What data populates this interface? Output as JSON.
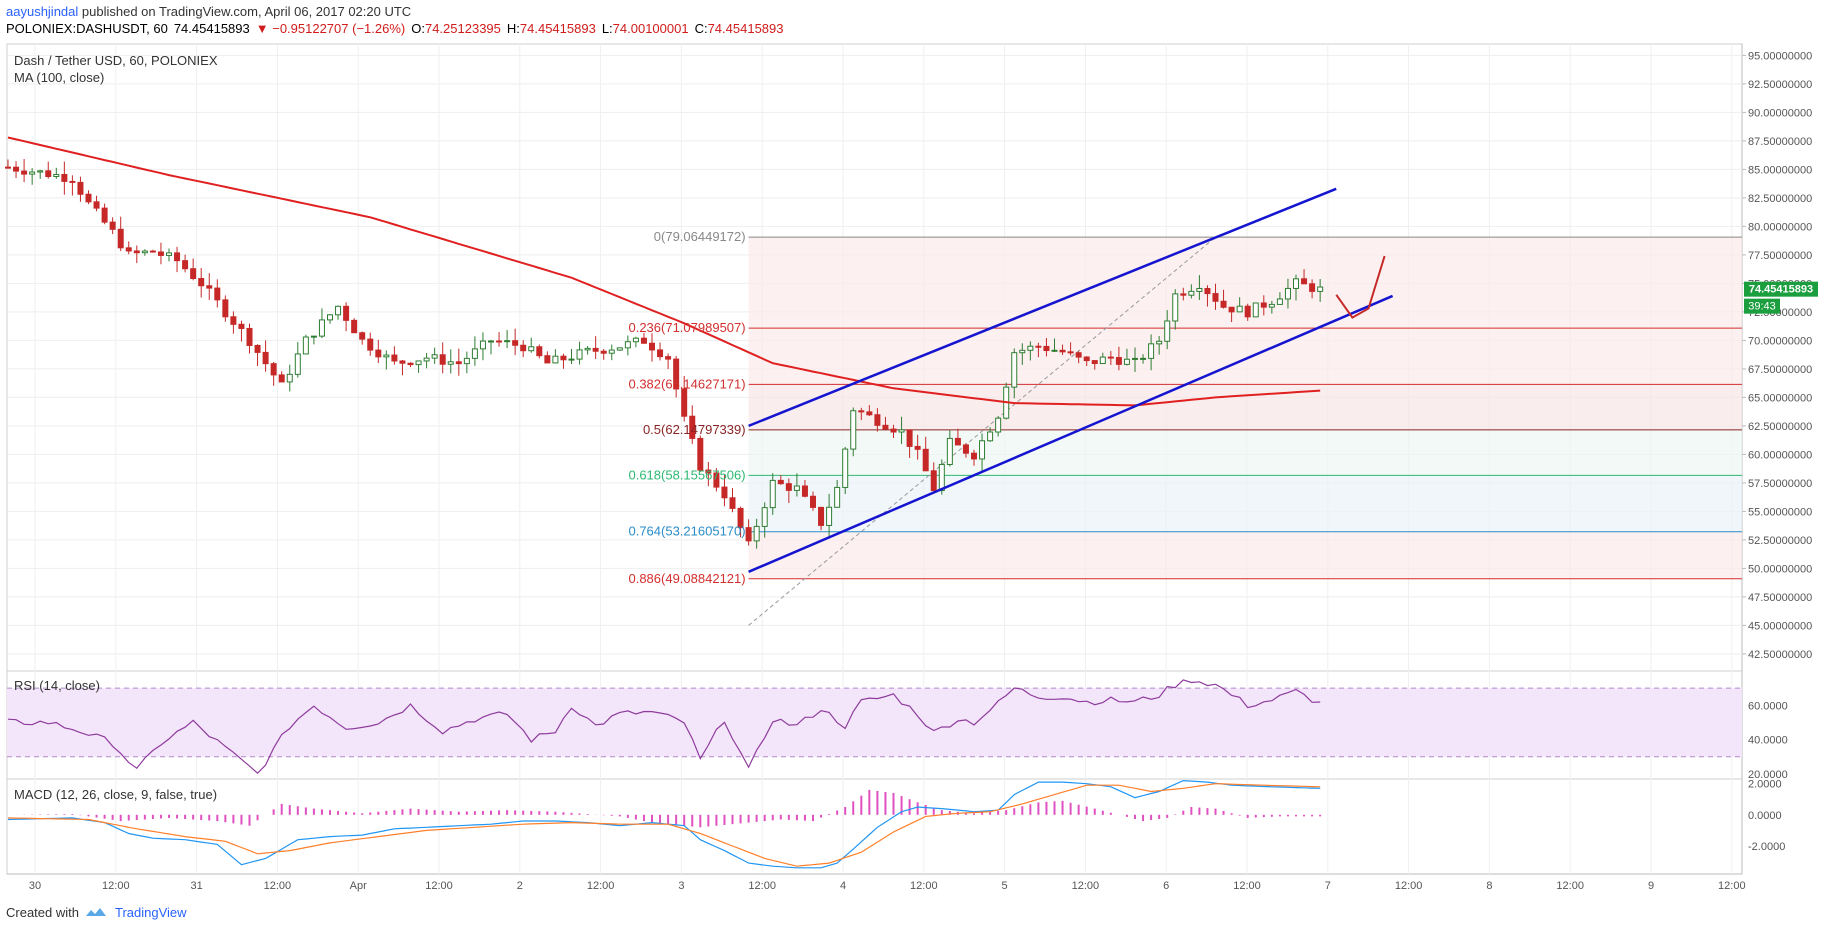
{
  "header": {
    "username": "aayushjindal",
    "published_text": " published on TradingView.com, April 06, 2017 02:20 UTC"
  },
  "symbol_bar": {
    "symbol": "POLONIEX:DASHUSDT, 60",
    "last": "74.45415893",
    "change": "▼ −0.95122707 (−1.26%)",
    "open_label": "O:",
    "open": "74.25123395",
    "high_label": "H:",
    "high": "74.45415893",
    "low_label": "L:",
    "low": "74.00100001",
    "close_label": "C:",
    "close": "74.45415893"
  },
  "chart_title": "Dash / Tether USD, 60, POLONIEX",
  "ma_label": "MA (100, close)",
  "rsi_label": "RSI (14, close)",
  "macd_label": "MACD (12, 26, close, 9, false, true)",
  "footer": {
    "created_with": "Created with",
    "brand": "TradingView"
  },
  "colors": {
    "up": "#2e7d32",
    "down": "#c62828",
    "ma": "#e02020",
    "channel": "#1515d0",
    "rsi": "#8e3c9c",
    "macd": "#2196f3",
    "signal": "#ff7f2a",
    "hist": "#e050c0"
  },
  "chart_data": [
    {
      "type": "candlestick",
      "title": "Dash / Tether USD, 60, POLONIEX",
      "x_ticks": [
        "30",
        "12:00",
        "31",
        "12:00",
        "Apr",
        "12:00",
        "2",
        "12:00",
        "3",
        "12:00",
        "4",
        "12:00",
        "5",
        "12:00",
        "6",
        "12:00",
        "7",
        "12:00",
        "8",
        "12:00",
        "9",
        "12:00"
      ],
      "y_ticks": [
        "95.00000000",
        "92.50000000",
        "90.00000000",
        "87.50000000",
        "85.00000000",
        "82.50000000",
        "80.00000000",
        "77.50000000",
        "75.00000000",
        "72.50000000",
        "70.00000000",
        "67.50000000",
        "65.00000000",
        "62.50000000",
        "60.00000000",
        "57.50000000",
        "55.00000000",
        "52.50000000",
        "50.00000000",
        "47.50000000",
        "45.00000000",
        "42.50000000"
      ],
      "ylim": [
        41,
        96
      ],
      "last_price_label": "74.45415893",
      "countdown_label": "39:43",
      "close_anchors": [
        [
          0,
          85.2
        ],
        [
          6,
          84.5
        ],
        [
          8,
          84.2
        ],
        [
          10,
          82.0
        ],
        [
          13,
          79.5
        ],
        [
          15,
          77.5
        ],
        [
          18,
          77.8
        ],
        [
          21,
          77.0
        ],
        [
          24,
          75.0
        ],
        [
          27,
          72.5
        ],
        [
          30,
          70.0
        ],
        [
          34,
          66.0
        ],
        [
          37,
          70.0
        ],
        [
          41,
          73.0
        ],
        [
          44,
          70.0
        ],
        [
          48,
          68.0
        ],
        [
          52,
          68.5
        ],
        [
          56,
          68.0
        ],
        [
          60,
          70.0
        ],
        [
          64,
          69.5
        ],
        [
          67,
          68.0
        ],
        [
          72,
          69.0
        ],
        [
          76,
          69.5
        ],
        [
          79,
          70.0
        ],
        [
          82,
          68.5
        ],
        [
          84,
          63.0
        ],
        [
          86,
          59.0
        ],
        [
          89,
          56.5
        ],
        [
          92,
          52.0
        ],
        [
          95,
          57.5
        ],
        [
          98,
          57.0
        ],
        [
          101,
          54.0
        ],
        [
          103,
          57.0
        ],
        [
          105,
          64.0
        ],
        [
          108,
          63.0
        ],
        [
          111,
          62.0
        ],
        [
          113,
          60.0
        ],
        [
          115,
          57.0
        ],
        [
          117,
          61.0
        ],
        [
          120,
          60.0
        ],
        [
          123,
          63.5
        ],
        [
          125,
          69.0
        ],
        [
          128,
          69.5
        ],
        [
          131,
          69.0
        ],
        [
          134,
          68.0
        ],
        [
          137,
          68.5
        ],
        [
          140,
          68.0
        ],
        [
          143,
          70.0
        ],
        [
          145,
          74.0
        ],
        [
          148,
          75.0
        ],
        [
          151,
          73.0
        ],
        [
          154,
          72.5
        ],
        [
          157,
          73.5
        ],
        [
          160,
          75.0
        ],
        [
          163,
          74.45
        ]
      ],
      "ma100_anchors": [
        [
          0,
          87.8
        ],
        [
          20,
          84.5
        ],
        [
          45,
          80.8
        ],
        [
          70,
          75.5
        ],
        [
          84,
          71.5
        ],
        [
          95,
          68.0
        ],
        [
          110,
          65.8
        ],
        [
          125,
          64.5
        ],
        [
          140,
          64.3
        ],
        [
          150,
          65.0
        ],
        [
          163,
          65.6
        ]
      ],
      "fib_levels": [
        {
          "label": "0(79.06449172)",
          "value": 79.06449172,
          "color": "#888888"
        },
        {
          "label": "0.236(71.07989507)",
          "value": 71.07989507,
          "color": "#d32f2f"
        },
        {
          "label": "0.382(66.14627171)",
          "value": 66.14627171,
          "color": "#d32f2f"
        },
        {
          "label": "0.5(62.14797339)",
          "value": 62.14797339,
          "color": "#8a2424"
        },
        {
          "label": "0.618(58.15567506)",
          "value": 58.15567506,
          "color": "#2eb872"
        },
        {
          "label": "0.764(53.21605170)",
          "value": 53.2160517,
          "color": "#2a8cc8"
        },
        {
          "label": "0.886(49.08842121)",
          "value": 49.08842121,
          "color": "#d32f2f"
        }
      ],
      "fib_diagonal": {
        "from": [
          92,
          45.0
        ],
        "to": [
          150,
          79.06
        ]
      },
      "channel_upper": {
        "from": [
          92,
          62.5
        ],
        "to": [
          165,
          83.3
        ]
      },
      "channel_lower": {
        "from": [
          92,
          49.7
        ],
        "to": [
          172,
          73.9
        ]
      },
      "annotation_arrow": [
        [
          165,
          74.0
        ],
        [
          167,
          72.0
        ],
        [
          169,
          72.8
        ],
        [
          171,
          77.4
        ]
      ]
    },
    {
      "type": "line",
      "title": "RSI (14, close)",
      "y_ticks": [
        "60.0000",
        "40.0000",
        "20.0000"
      ],
      "ylim": [
        17,
        80
      ],
      "bands": [
        70,
        30
      ],
      "series": [
        {
          "values_anchors": [
            [
              0,
              50
            ],
            [
              5,
              50
            ],
            [
              9,
              45
            ],
            [
              13,
              38
            ],
            [
              16,
              22
            ],
            [
              19,
              38
            ],
            [
              23,
              50
            ],
            [
              27,
              35
            ],
            [
              31,
              20
            ],
            [
              35,
              48
            ],
            [
              38,
              60
            ],
            [
              42,
              47
            ],
            [
              46,
              50
            ],
            [
              50,
              60
            ],
            [
              54,
              45
            ],
            [
              58,
              52
            ],
            [
              62,
              55
            ],
            [
              65,
              40
            ],
            [
              68,
              45
            ],
            [
              70,
              60
            ],
            [
              73,
              48
            ],
            [
              76,
              55
            ],
            [
              80,
              56
            ],
            [
              84,
              50
            ],
            [
              86,
              28
            ],
            [
              89,
              52
            ],
            [
              92,
              22
            ],
            [
              95,
              52
            ],
            [
              98,
              48
            ],
            [
              101,
              58
            ],
            [
              104,
              48
            ],
            [
              106,
              62
            ],
            [
              110,
              66
            ],
            [
              113,
              55
            ],
            [
              115,
              44
            ],
            [
              118,
              52
            ],
            [
              120,
              50
            ],
            [
              123,
              61
            ],
            [
              125,
              70
            ],
            [
              128,
              65
            ],
            [
              131,
              65
            ],
            [
              134,
              62
            ],
            [
              137,
              63
            ],
            [
              140,
              62
            ],
            [
              143,
              66
            ],
            [
              145,
              72
            ],
            [
              147,
              75
            ],
            [
              150,
              72
            ],
            [
              154,
              60
            ],
            [
              157,
              63
            ],
            [
              160,
              68
            ],
            [
              163,
              61
            ]
          ]
        }
      ]
    },
    {
      "type": "line",
      "title": "MACD (12, 26, close, 9, false, true)",
      "y_ticks": [
        "2.0000",
        "0.0000",
        "-2.0000"
      ],
      "ylim": [
        -3.8,
        2.3
      ],
      "series": [
        {
          "name": "MACD",
          "values_anchors": [
            [
              0,
              -0.3
            ],
            [
              8,
              -0.2
            ],
            [
              12,
              -0.5
            ],
            [
              15,
              -1.2
            ],
            [
              18,
              -1.5
            ],
            [
              22,
              -1.6
            ],
            [
              26,
              -1.9
            ],
            [
              29,
              -3.2
            ],
            [
              32,
              -2.8
            ],
            [
              36,
              -1.6
            ],
            [
              40,
              -1.4
            ],
            [
              44,
              -1.3
            ],
            [
              48,
              -0.9
            ],
            [
              52,
              -0.8
            ],
            [
              56,
              -0.7
            ],
            [
              60,
              -0.6
            ],
            [
              64,
              -0.4
            ],
            [
              68,
              -0.4
            ],
            [
              72,
              -0.5
            ],
            [
              76,
              -0.7
            ],
            [
              80,
              -0.5
            ],
            [
              84,
              -0.7
            ],
            [
              86,
              -1.6
            ],
            [
              89,
              -2.3
            ],
            [
              92,
              -3.1
            ],
            [
              95,
              -3.3
            ],
            [
              98,
              -3.4
            ],
            [
              101,
              -3.4
            ],
            [
              103,
              -3.1
            ],
            [
              105,
              -2.2
            ],
            [
              108,
              -0.8
            ],
            [
              111,
              0.2
            ],
            [
              113,
              0.5
            ],
            [
              116,
              0.4
            ],
            [
              120,
              0.2
            ],
            [
              123,
              0.3
            ],
            [
              125,
              1.3
            ],
            [
              128,
              2.1
            ],
            [
              131,
              2.1
            ],
            [
              134,
              2.0
            ],
            [
              137,
              1.8
            ],
            [
              140,
              1.1
            ],
            [
              143,
              1.5
            ],
            [
              146,
              2.2
            ],
            [
              149,
              2.1
            ],
            [
              152,
              1.9
            ],
            [
              157,
              1.8
            ],
            [
              163,
              1.7
            ]
          ]
        },
        {
          "name": "Signal",
          "values_anchors": [
            [
              0,
              -0.2
            ],
            [
              10,
              -0.3
            ],
            [
              16,
              -0.9
            ],
            [
              22,
              -1.4
            ],
            [
              27,
              -1.7
            ],
            [
              31,
              -2.5
            ],
            [
              35,
              -2.3
            ],
            [
              40,
              -1.8
            ],
            [
              46,
              -1.4
            ],
            [
              52,
              -1.0
            ],
            [
              58,
              -0.8
            ],
            [
              64,
              -0.6
            ],
            [
              70,
              -0.5
            ],
            [
              76,
              -0.6
            ],
            [
              82,
              -0.6
            ],
            [
              86,
              -1.2
            ],
            [
              90,
              -2.0
            ],
            [
              94,
              -2.8
            ],
            [
              98,
              -3.3
            ],
            [
              102,
              -3.1
            ],
            [
              106,
              -2.4
            ],
            [
              110,
              -1.1
            ],
            [
              114,
              -0.1
            ],
            [
              118,
              0.1
            ],
            [
              122,
              0.2
            ],
            [
              126,
              0.7
            ],
            [
              130,
              1.3
            ],
            [
              134,
              1.9
            ],
            [
              138,
              1.9
            ],
            [
              142,
              1.5
            ],
            [
              146,
              1.7
            ],
            [
              150,
              2.0
            ],
            [
              156,
              1.9
            ],
            [
              163,
              1.8
            ]
          ]
        },
        {
          "name": "Histogram",
          "values_anchors": [
            [
              0,
              0.0
            ],
            [
              8,
              0.05
            ],
            [
              14,
              -0.4
            ],
            [
              20,
              -0.2
            ],
            [
              26,
              -0.4
            ],
            [
              30,
              -0.7
            ],
            [
              34,
              0.7
            ],
            [
              38,
              0.4
            ],
            [
              44,
              0.1
            ],
            [
              50,
              0.4
            ],
            [
              56,
              0.2
            ],
            [
              62,
              0.3
            ],
            [
              68,
              0.2
            ],
            [
              76,
              -0.1
            ],
            [
              80,
              -0.5
            ],
            [
              86,
              -0.8
            ],
            [
              90,
              -0.6
            ],
            [
              96,
              -0.3
            ],
            [
              100,
              -0.4
            ],
            [
              104,
              0.5
            ],
            [
              107,
              1.6
            ],
            [
              110,
              1.4
            ],
            [
              113,
              0.8
            ],
            [
              116,
              0.3
            ],
            [
              120,
              0.1
            ],
            [
              124,
              0.3
            ],
            [
              128,
              0.8
            ],
            [
              131,
              0.9
            ],
            [
              135,
              0.4
            ],
            [
              138,
              0.0
            ],
            [
              141,
              -0.4
            ],
            [
              144,
              -0.2
            ],
            [
              147,
              0.5
            ],
            [
              150,
              0.4
            ],
            [
              154,
              -0.2
            ],
            [
              158,
              -0.1
            ],
            [
              163,
              -0.1
            ]
          ]
        }
      ]
    }
  ]
}
